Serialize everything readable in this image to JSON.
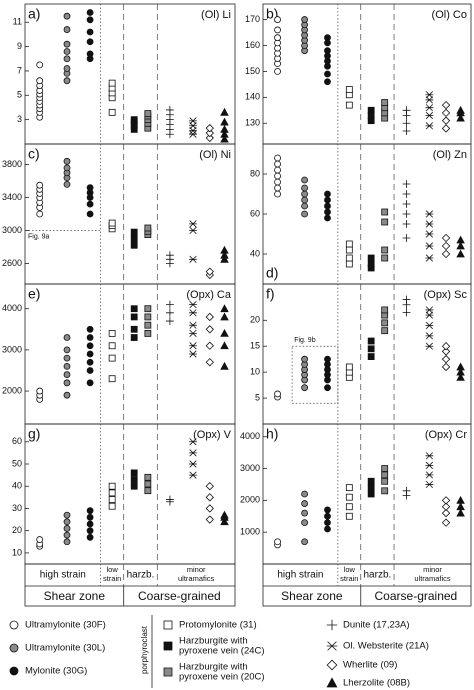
{
  "figure": {
    "groups": [
      [
        "high strain"
      ],
      [
        "low",
        "strain"
      ],
      [
        "harzb."
      ],
      [
        "minor",
        "ultramafics"
      ]
    ],
    "supergroups": [
      "Shear zone",
      "Coarse-grained"
    ],
    "legend_note": "porphyroclast",
    "samples": [
      {
        "name": [
          "Ultramylonite (30F)"
        ],
        "marker": "circle-open"
      },
      {
        "name": [
          "Ultramylonite (30L)"
        ],
        "marker": "circle-gray"
      },
      {
        "name": [
          "Mylonite (30G)"
        ],
        "marker": "circle-black"
      },
      {
        "name": [
          "Protomylonite (31)"
        ],
        "marker": "square-open"
      },
      {
        "name": [
          "Harzburgite with",
          "pyroxene vein (24C)"
        ],
        "marker": "square-black"
      },
      {
        "name": [
          "Harzburgite with",
          "pyroxene vein (20C)"
        ],
        "marker": "square-gray"
      },
      {
        "name": [
          "Dunite (17,23A)"
        ],
        "marker": "plus"
      },
      {
        "name": [
          "Ol. Websterite (21A)"
        ],
        "marker": "asterisk"
      },
      {
        "name": [
          "Wherlite (09)"
        ],
        "marker": "diamond-open"
      },
      {
        "name": [
          "Lherzolite (08B)"
        ],
        "marker": "triangle-black"
      }
    ]
  },
  "chart_data": [
    {
      "type": "strip",
      "label": "a)",
      "title": "(Ol) Li",
      "ylim": [
        1,
        12.5
      ],
      "yticks": [
        3,
        5,
        7,
        9,
        11
      ],
      "series": [
        {
          "values": [
            3.2,
            3.6,
            3.9,
            4.2,
            4.5,
            4.8,
            5.1,
            5.4,
            5.8,
            6.2,
            7.5
          ]
        },
        {
          "values": [
            6.2,
            6.8,
            7.2,
            8,
            8.6,
            9.2,
            10.4,
            11.5
          ]
        },
        {
          "values": [
            8,
            8.4,
            9.4,
            10.2,
            11.2,
            11.8
          ]
        },
        {
          "values": [
            3.6,
            4.8,
            5.2,
            5.6,
            6
          ]
        },
        {
          "values": [
            2.2,
            2.5,
            2.8,
            3
          ]
        },
        {
          "values": [
            2.3,
            2.7,
            3,
            3.3,
            3.5
          ]
        },
        {
          "values": [
            1.8,
            2.2,
            2.6,
            3,
            3.4,
            3.8
          ]
        },
        {
          "values": [
            1.8,
            2.1,
            2.5,
            2.9
          ]
        },
        {
          "values": [
            1.5,
            1.9,
            2.3
          ]
        },
        {
          "values": [
            1.4,
            1.8,
            2.2,
            2.8,
            3.6
          ]
        }
      ]
    },
    {
      "type": "strip",
      "label": "b)",
      "title": "(Ol) Co",
      "ylim": [
        122,
        176
      ],
      "yticks": [
        130,
        140,
        150,
        160,
        170
      ],
      "series": [
        {
          "values": [
            150,
            153,
            155,
            157,
            159,
            161,
            163,
            166,
            170
          ]
        },
        {
          "values": [
            158,
            160,
            162,
            164,
            166,
            168,
            170
          ]
        },
        {
          "values": [
            146,
            149,
            152,
            154,
            156,
            158,
            161,
            163
          ]
        },
        {
          "values": [
            137,
            141,
            143
          ]
        },
        {
          "values": [
            131,
            133,
            135
          ]
        },
        {
          "values": [
            132,
            134,
            136,
            138
          ]
        },
        {
          "values": [
            127,
            130,
            133,
            135
          ]
        },
        {
          "values": [
            129,
            133,
            136,
            139,
            141
          ]
        },
        {
          "values": [
            128,
            131,
            134,
            137
          ]
        },
        {
          "values": [
            132,
            134,
            135
          ]
        }
      ]
    },
    {
      "type": "strip",
      "label": "c)",
      "title": "(Ol) Ni",
      "ylim": [
        2350,
        4050
      ],
      "yticks": [
        2600,
        3000,
        3400,
        3800
      ],
      "annotation": {
        "text": "Fig. 9a",
        "y": 3000
      },
      "series": [
        {
          "values": [
            3200,
            3280,
            3340,
            3400,
            3450,
            3500,
            3550
          ]
        },
        {
          "values": [
            3560,
            3640,
            3700,
            3760,
            3840
          ]
        },
        {
          "values": [
            3200,
            3320,
            3400,
            3460,
            3520
          ]
        },
        {
          "values": [
            3020,
            3060,
            3090
          ]
        },
        {
          "values": [
            2820,
            2900,
            2980
          ]
        },
        {
          "values": [
            2950,
            2990,
            3030
          ]
        },
        {
          "values": [
            2600,
            2650,
            2700
          ]
        },
        {
          "values": [
            2650,
            3000,
            3080
          ]
        },
        {
          "values": [
            2460,
            2500
          ]
        },
        {
          "values": [
            2650,
            2700,
            2760
          ]
        }
      ]
    },
    {
      "type": "strip",
      "label": "d)",
      "label_corner": "lower left",
      "title": "(Ol) Zn",
      "ylim": [
        25,
        95
      ],
      "yticks": [
        40,
        60,
        80
      ],
      "series": [
        {
          "values": [
            70,
            73,
            76,
            79,
            82,
            85,
            88
          ]
        },
        {
          "values": [
            60,
            64,
            67,
            70,
            73,
            77
          ]
        },
        {
          "values": [
            58,
            61,
            64,
            67,
            70
          ]
        },
        {
          "values": [
            35,
            38,
            42,
            45
          ]
        },
        {
          "values": [
            33,
            35,
            38
          ]
        },
        {
          "values": [
            38,
            42,
            56,
            61
          ]
        },
        {
          "values": [
            48,
            55,
            60,
            65,
            70,
            75
          ]
        },
        {
          "values": [
            38,
            44,
            50,
            55,
            60
          ]
        },
        {
          "values": [
            40,
            44,
            48
          ]
        },
        {
          "values": [
            40,
            44,
            47
          ]
        }
      ]
    },
    {
      "type": "strip",
      "label": "e)",
      "title": "(Opx) Ca",
      "ylim": [
        1200,
        4600
      ],
      "yticks": [
        2000,
        3000,
        4000
      ],
      "series": [
        {
          "values": [
            1800,
            1900,
            2000
          ]
        },
        {
          "values": [
            1900,
            2200,
            2400,
            2600,
            2800,
            3000,
            3300
          ]
        },
        {
          "values": [
            2200,
            2500,
            2700,
            2900,
            3100,
            3300,
            3500
          ]
        },
        {
          "values": [
            2300,
            2800,
            3100,
            3400
          ]
        },
        {
          "values": [
            3300,
            3500,
            3800,
            4000
          ]
        },
        {
          "values": [
            3400,
            3600,
            3800,
            4000
          ]
        },
        {
          "values": [
            3700,
            3900,
            4100
          ]
        },
        {
          "values": [
            2900,
            3100,
            3400,
            3600,
            3900,
            4100
          ]
        },
        {
          "values": [
            2700,
            3100,
            3500,
            3800
          ]
        },
        {
          "values": [
            2600,
            3100,
            3400,
            3800,
            4000
          ]
        }
      ]
    },
    {
      "type": "strip",
      "label": "f)",
      "title": "(Opx) Sc",
      "ylim": [
        0,
        27
      ],
      "yticks": [
        5,
        10,
        15,
        20
      ],
      "annotation": {
        "text": "Fig. 9b",
        "yrange": [
          4,
          15
        ]
      },
      "series": [
        {
          "values": [
            5.2,
            5.8
          ]
        },
        {
          "values": [
            7,
            8.5,
            9.5,
            10.5,
            11.5,
            12.5
          ]
        },
        {
          "values": [
            7,
            8.5,
            9.5,
            10.5,
            11.5,
            12.5
          ]
        },
        {
          "values": [
            9,
            10,
            11
          ]
        },
        {
          "values": [
            13,
            14.5,
            16
          ]
        },
        {
          "values": [
            18,
            19.5,
            21,
            22
          ]
        },
        {
          "values": [
            21.5,
            23,
            24
          ]
        },
        {
          "values": [
            15,
            17,
            19,
            21,
            22
          ]
        },
        {
          "values": [
            11,
            12.5,
            14,
            15
          ]
        },
        {
          "values": [
            9,
            10,
            11
          ]
        }
      ]
    },
    {
      "type": "strip",
      "label": "g)",
      "title": "(Opx) V",
      "ylim": [
        5,
        68
      ],
      "yticks": [
        10,
        20,
        30,
        40,
        50,
        60
      ],
      "series": [
        {
          "values": [
            13,
            14,
            16
          ]
        },
        {
          "values": [
            15,
            18,
            21,
            24,
            27
          ]
        },
        {
          "values": [
            17,
            20,
            23,
            26,
            29
          ]
        },
        {
          "values": [
            31,
            34,
            37,
            40
          ]
        },
        {
          "values": [
            40,
            43,
            46
          ]
        },
        {
          "values": [
            38,
            41,
            44
          ]
        },
        {
          "values": [
            33,
            34
          ]
        },
        {
          "values": [
            45,
            50,
            55,
            60
          ]
        },
        {
          "values": [
            25,
            30,
            35,
            40
          ]
        },
        {
          "values": [
            24,
            26,
            27
          ]
        }
      ]
    },
    {
      "type": "strip",
      "label": "h)",
      "title": "(Opx) Cr",
      "ylim": [
        0,
        4400
      ],
      "yticks": [
        1000,
        2000,
        3000,
        4000
      ],
      "series": [
        {
          "values": [
            600,
            700
          ]
        },
        {
          "values": [
            700,
            1300,
            1600,
            1900,
            2200
          ]
        },
        {
          "values": [
            1100,
            1300,
            1500,
            1700
          ]
        },
        {
          "values": [
            1500,
            1800,
            2100,
            2400
          ]
        },
        {
          "values": [
            2200,
            2400,
            2600
          ]
        },
        {
          "values": [
            2300,
            2600,
            2800,
            3000
          ]
        },
        {
          "values": [
            2150,
            2300
          ]
        },
        {
          "values": [
            2500,
            2800,
            3100,
            3400
          ]
        },
        {
          "values": [
            1300,
            1600,
            1800,
            2000
          ]
        },
        {
          "values": [
            1600,
            1800,
            2000
          ]
        }
      ]
    }
  ]
}
